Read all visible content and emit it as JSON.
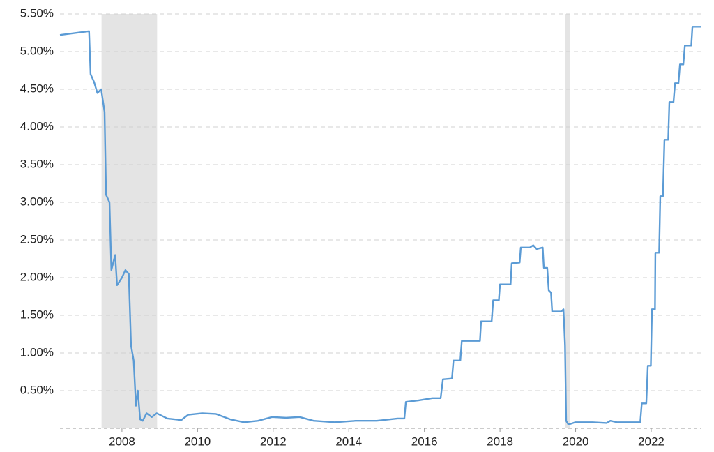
{
  "chart_data": {
    "type": "line",
    "x": [
      2006.36,
      2007.13,
      2007.17,
      2007.26,
      2007.35,
      2007.45,
      2007.54,
      2007.58,
      2007.67,
      2007.72,
      2007.82,
      2007.87,
      2008.0,
      2008.09,
      2008.18,
      2008.24,
      2008.31,
      2008.37,
      2008.42,
      2008.48,
      2008.55,
      2008.65,
      2008.79,
      2008.92,
      2009.2,
      2009.57,
      2009.75,
      2010.12,
      2010.49,
      2010.86,
      2011.23,
      2011.6,
      2011.97,
      2012.34,
      2012.7,
      2013.07,
      2013.63,
      2014.18,
      2014.74,
      2015.29,
      2015.47,
      2015.51,
      2015.84,
      2016.21,
      2016.43,
      2016.49,
      2016.73,
      2016.77,
      2016.95,
      2016.99,
      2017.47,
      2017.5,
      2017.78,
      2017.82,
      2017.97,
      2018.0,
      2018.28,
      2018.31,
      2018.52,
      2018.55,
      2018.79,
      2018.88,
      2018.97,
      2019.13,
      2019.16,
      2019.25,
      2019.29,
      2019.35,
      2019.38,
      2019.62,
      2019.68,
      2019.72,
      2019.75,
      2019.81,
      2019.99,
      2020.45,
      2020.82,
      2020.92,
      2021.1,
      2021.71,
      2021.75,
      2021.87,
      2021.91,
      2021.99,
      2022.02,
      2022.1,
      2022.11,
      2022.21,
      2022.24,
      2022.31,
      2022.35,
      2022.45,
      2022.48,
      2022.59,
      2022.63,
      2022.72,
      2022.76,
      2022.85,
      2022.89,
      2023.06,
      2023.09,
      2023.31
    ],
    "series": [
      {
        "color": "#5b9bd5",
        "values": [
          5.22,
          5.27,
          4.7,
          4.6,
          4.45,
          4.5,
          4.2,
          3.1,
          3.0,
          2.1,
          2.3,
          1.9,
          2.0,
          2.1,
          2.05,
          1.1,
          0.9,
          0.3,
          0.5,
          0.12,
          0.1,
          0.2,
          0.15,
          0.2,
          0.13,
          0.11,
          0.18,
          0.2,
          0.19,
          0.12,
          0.08,
          0.1,
          0.15,
          0.14,
          0.15,
          0.1,
          0.08,
          0.1,
          0.1,
          0.13,
          0.13,
          0.35,
          0.37,
          0.4,
          0.4,
          0.65,
          0.66,
          0.9,
          0.9,
          1.16,
          1.16,
          1.42,
          1.42,
          1.7,
          1.7,
          1.91,
          1.91,
          2.19,
          2.2,
          2.4,
          2.4,
          2.43,
          2.38,
          2.4,
          2.13,
          2.13,
          1.83,
          1.8,
          1.55,
          1.55,
          1.58,
          1.1,
          0.1,
          0.05,
          0.08,
          0.08,
          0.07,
          0.1,
          0.08,
          0.08,
          0.33,
          0.33,
          0.83,
          0.83,
          1.58,
          1.58,
          2.33,
          2.33,
          3.08,
          3.08,
          3.83,
          3.83,
          4.33,
          4.33,
          4.58,
          4.58,
          4.83,
          4.83,
          5.08,
          5.08,
          5.33,
          5.33
        ]
      }
    ],
    "recessions": [
      [
        2007.46,
        2008.93
      ],
      [
        2019.72,
        2019.85
      ]
    ],
    "recession_color": "#e4e4e4",
    "xlim": [
      2006.36,
      2023.31
    ],
    "xticks": [
      2008,
      2010,
      2012,
      2014,
      2016,
      2018,
      2020,
      2022
    ],
    "ylim": [
      0,
      5.5
    ],
    "yticks": [
      {
        "value": 0.5,
        "label": "0.50%"
      },
      {
        "value": 1.0,
        "label": "1.00%"
      },
      {
        "value": 1.5,
        "label": "1.50%"
      },
      {
        "value": 2.0,
        "label": "2.00%"
      },
      {
        "value": 2.5,
        "label": "2.50%"
      },
      {
        "value": 3.0,
        "label": "3.00%"
      },
      {
        "value": 3.5,
        "label": "3.50%"
      },
      {
        "value": 4.0,
        "label": "4.00%"
      },
      {
        "value": 4.5,
        "label": "4.50%"
      },
      {
        "value": 5.0,
        "label": "5.00%"
      },
      {
        "value": 5.5,
        "label": "5.50%"
      }
    ],
    "grid": true
  }
}
